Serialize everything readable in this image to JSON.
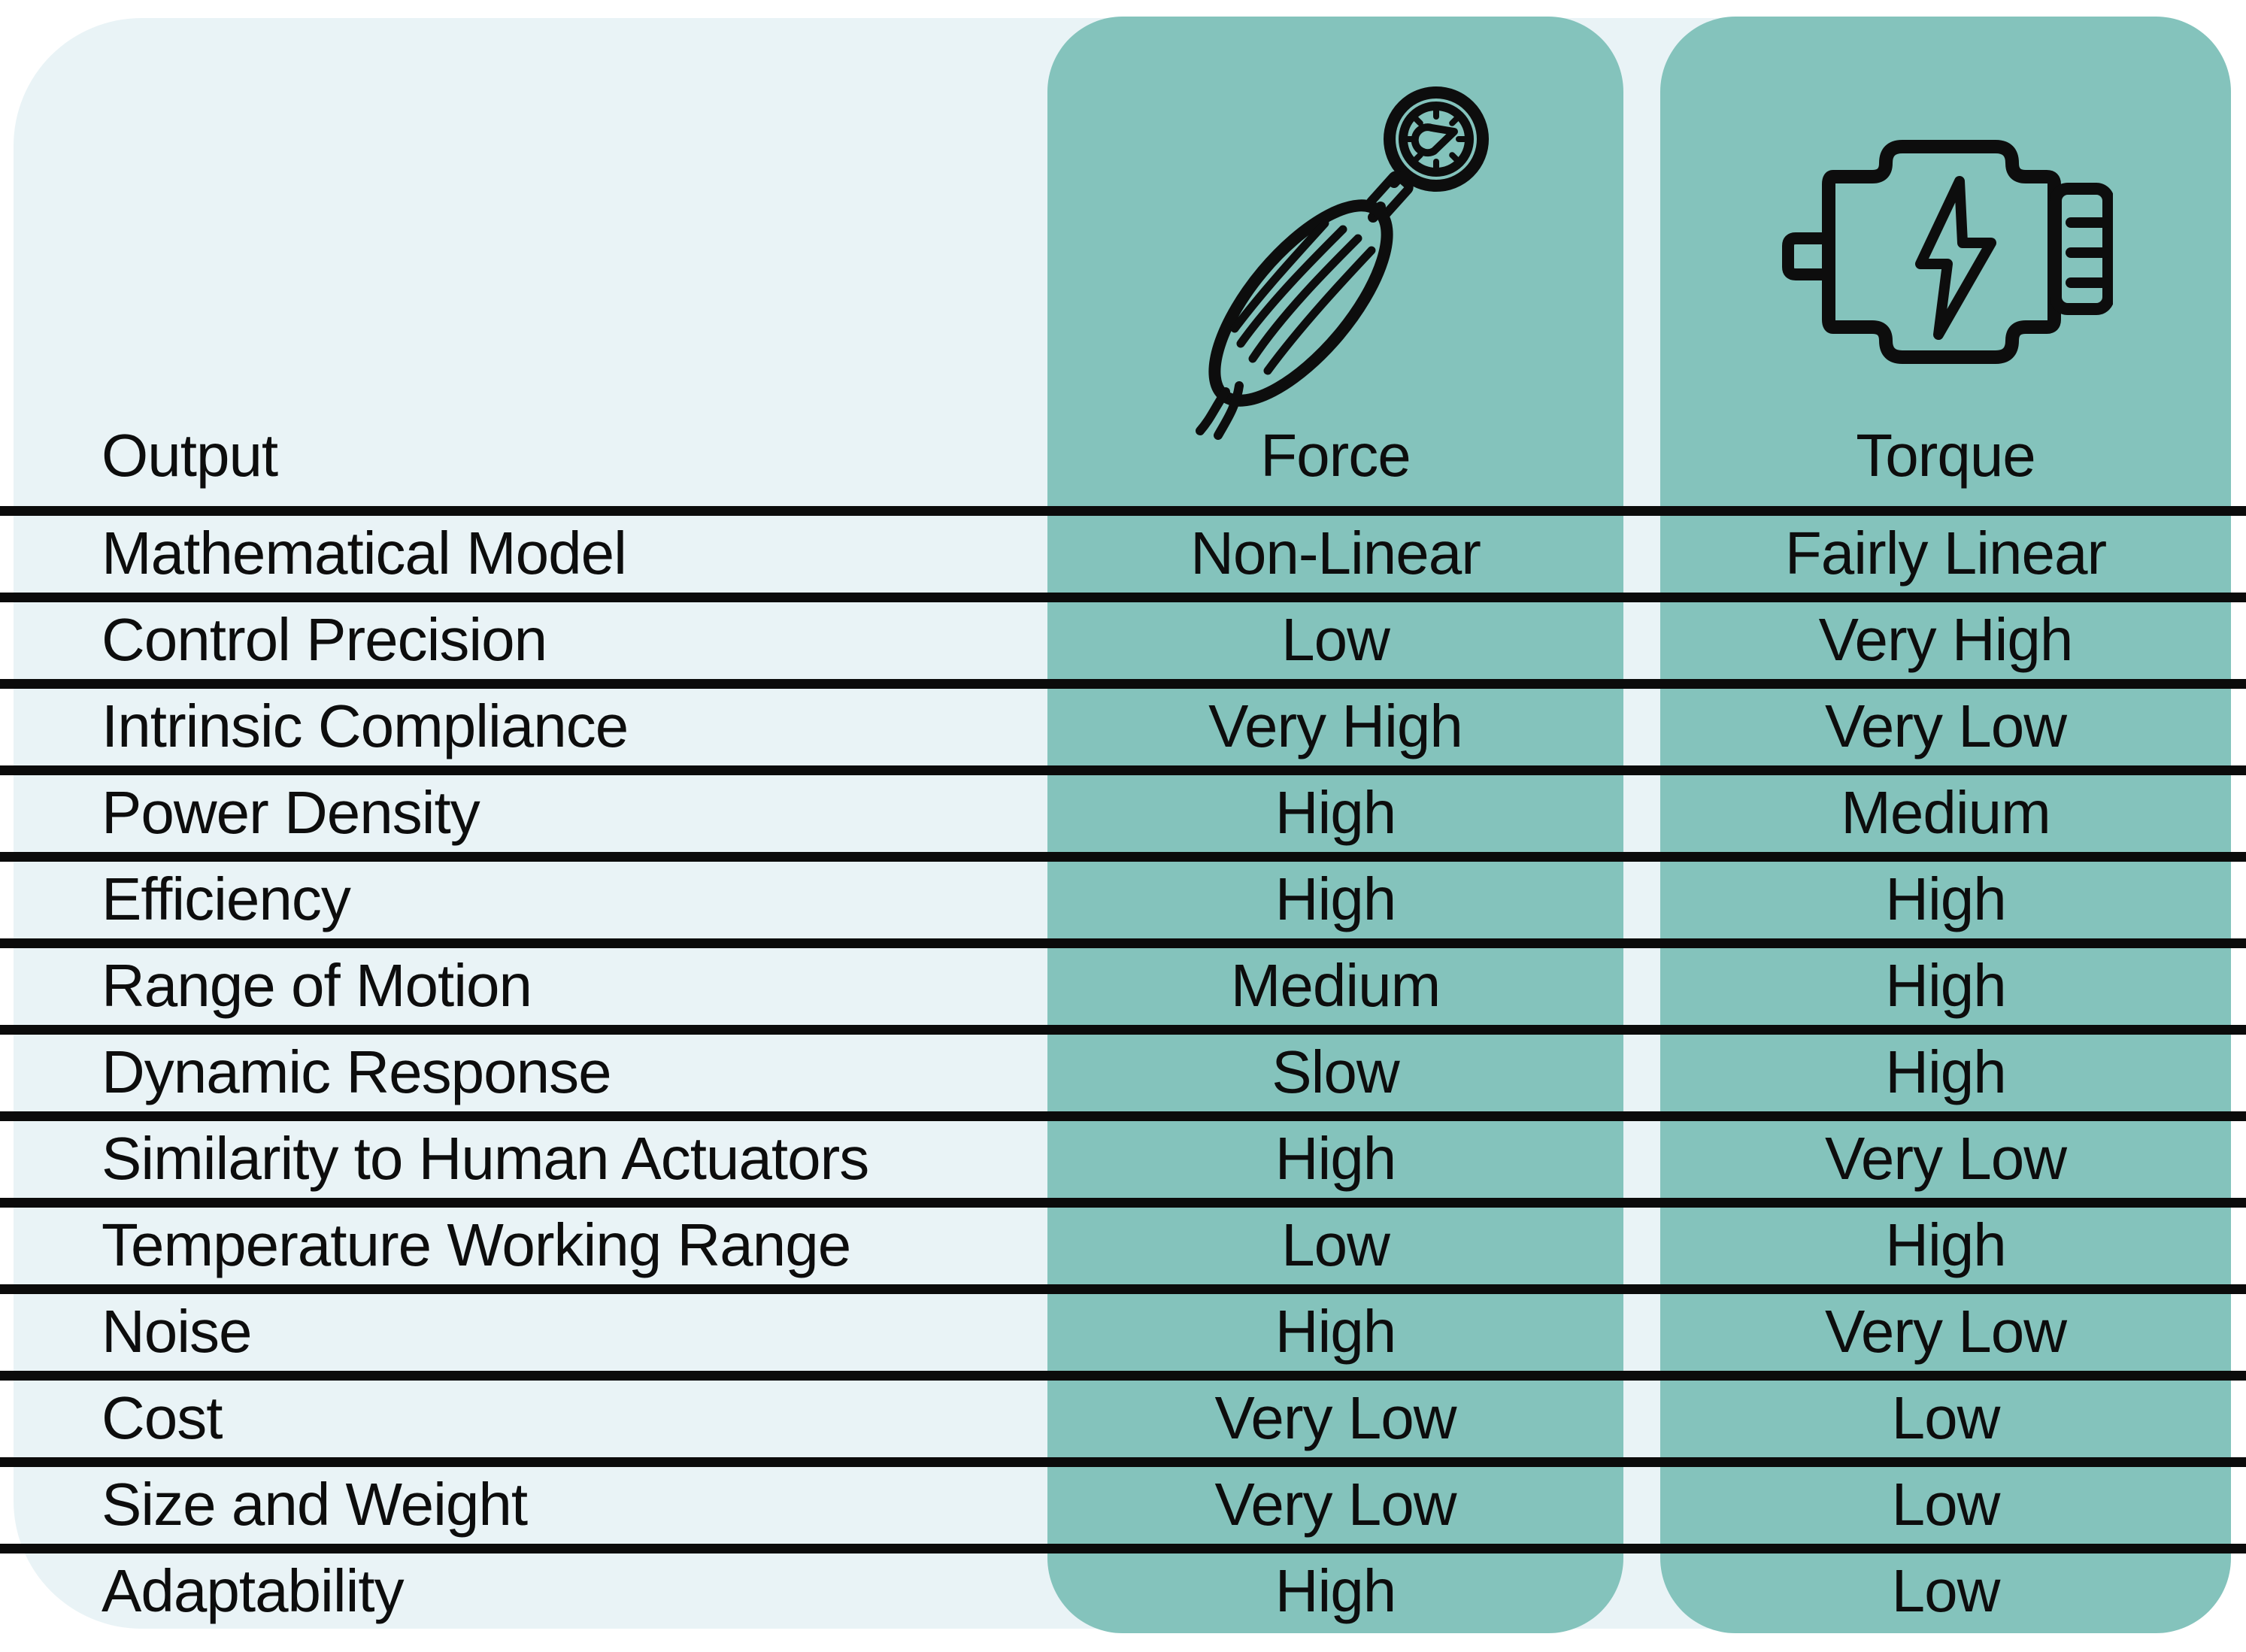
{
  "table": {
    "header": {
      "output_label": "Output",
      "columns": [
        {
          "label": "Force",
          "icon": "pneumatic-muscle-gauge-icon"
        },
        {
          "label": "Torque",
          "icon": "electric-motor-icon"
        }
      ]
    },
    "rows": [
      {
        "label": "Mathematical Model",
        "force": "Non-Linear",
        "torque": "Fairly Linear"
      },
      {
        "label": "Control Precision",
        "force": "Low",
        "torque": "Very High"
      },
      {
        "label": "Intrinsic Compliance",
        "force": "Very High",
        "torque": "Very Low"
      },
      {
        "label": "Power Density",
        "force": "High",
        "torque": "Medium"
      },
      {
        "label": "Efficiency",
        "force": "High",
        "torque": "High"
      },
      {
        "label": "Range of Motion",
        "force": "Medium",
        "torque": "High"
      },
      {
        "label": "Dynamic Response",
        "force": "Slow",
        "torque": "High"
      },
      {
        "label": "Similarity to Human Actuators",
        "force": "High",
        "torque": "Very Low"
      },
      {
        "label": "Temperature Working Range",
        "force": "Low",
        "torque": "High"
      },
      {
        "label": "Noise",
        "force": "High",
        "torque": "Very Low"
      },
      {
        "label": "Cost",
        "force": "Very Low",
        "torque": "Low"
      },
      {
        "label": "Size and Weight",
        "force": "Very Low",
        "torque": "Low"
      },
      {
        "label": "Adaptability",
        "force": "High",
        "torque": "Low"
      }
    ]
  },
  "colors": {
    "column_highlight": "#84c3bc",
    "panel_background": "#e9f3f6",
    "separator_line": "#0b0b0b",
    "text": "#0d0d0d"
  },
  "chart_data": {
    "type": "table",
    "columns": [
      "Output",
      "Force",
      "Torque"
    ],
    "rows": [
      [
        "Mathematical Model",
        "Non-Linear",
        "Fairly Linear"
      ],
      [
        "Control Precision",
        "Low",
        "Very High"
      ],
      [
        "Intrinsic Compliance",
        "Very High",
        "Very Low"
      ],
      [
        "Power Density",
        "High",
        "Medium"
      ],
      [
        "Efficiency",
        "High",
        "High"
      ],
      [
        "Range of Motion",
        "Medium",
        "High"
      ],
      [
        "Dynamic Response",
        "Slow",
        "High"
      ],
      [
        "Similarity to Human Actuators",
        "High",
        "Very Low"
      ],
      [
        "Temperature Working Range",
        "Low",
        "High"
      ],
      [
        "Noise",
        "High",
        "Very Low"
      ],
      [
        "Cost",
        "Very Low",
        "Low"
      ],
      [
        "Size and Weight",
        "Very Low",
        "Low"
      ],
      [
        "Adaptability",
        "High",
        "Low"
      ]
    ],
    "title": "",
    "legend": "none",
    "grid": "horizontal separator lines only"
  }
}
